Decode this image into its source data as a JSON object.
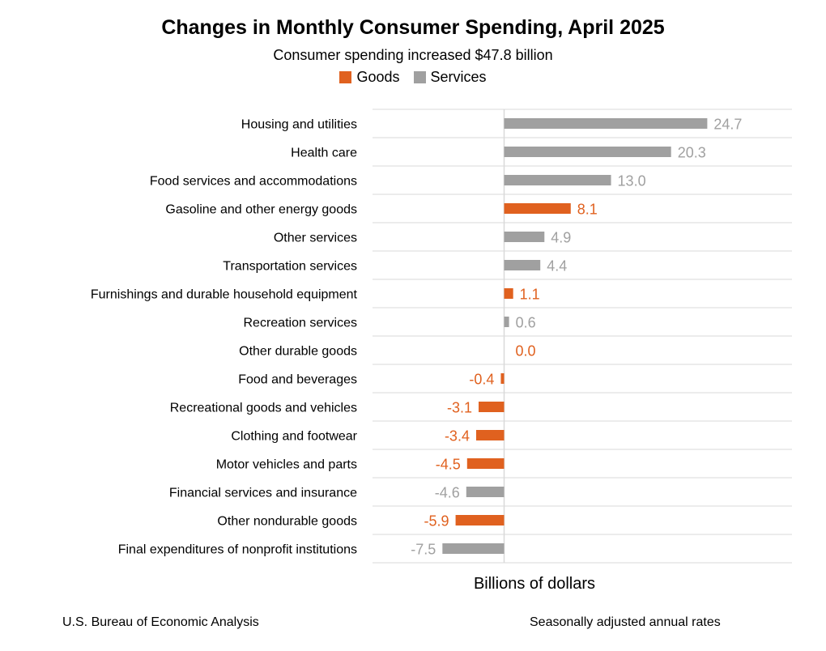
{
  "chart_data": {
    "type": "bar",
    "orientation": "horizontal",
    "title": "Changes in Monthly Consumer Spending, April 2025",
    "subtitle": "Consumer spending increased $47.8 billion",
    "xlabel": "Billions of dollars",
    "xlim": [
      -16,
      35
    ],
    "legend": [
      {
        "name": "Goods",
        "color": "#E0611F"
      },
      {
        "name": "Services",
        "color": "#A0A0A0"
      }
    ],
    "categories": [
      {
        "label": "Housing and utilities",
        "value": 24.7,
        "display": "24.7",
        "type": "Services"
      },
      {
        "label": "Health care",
        "value": 20.3,
        "display": "20.3",
        "type": "Services"
      },
      {
        "label": "Food services and accommodations",
        "value": 13.0,
        "display": "13.0",
        "type": "Services"
      },
      {
        "label": "Gasoline and other energy goods",
        "value": 8.1,
        "display": "8.1",
        "type": "Goods"
      },
      {
        "label": "Other services",
        "value": 4.9,
        "display": "4.9",
        "type": "Services"
      },
      {
        "label": "Transportation services",
        "value": 4.4,
        "display": "4.4",
        "type": "Services"
      },
      {
        "label": "Furnishings and durable household equipment",
        "value": 1.1,
        "display": "1.1",
        "type": "Goods"
      },
      {
        "label": "Recreation services",
        "value": 0.6,
        "display": "0.6",
        "type": "Services"
      },
      {
        "label": "Other durable goods",
        "value": 0.0,
        "display": "0.0",
        "type": "Goods"
      },
      {
        "label": "Food and beverages",
        "value": -0.4,
        "display": "-0.4",
        "type": "Goods"
      },
      {
        "label": "Recreational goods and vehicles",
        "value": -3.1,
        "display": "-3.1",
        "type": "Goods"
      },
      {
        "label": "Clothing and footwear",
        "value": -3.4,
        "display": "-3.4",
        "type": "Goods"
      },
      {
        "label": "Motor vehicles and parts",
        "value": -4.5,
        "display": "-4.5",
        "type": "Goods"
      },
      {
        "label": "Financial services and insurance",
        "value": -4.6,
        "display": "-4.6",
        "type": "Services"
      },
      {
        "label": "Other nondurable goods",
        "value": -5.9,
        "display": "-5.9",
        "type": "Goods"
      },
      {
        "label": "Final expenditures of nonprofit institutions",
        "value": -7.5,
        "display": "-7.5",
        "type": "Services"
      }
    ]
  },
  "footer": {
    "source": "U.S. Bureau of Economic Analysis",
    "note": "Seasonally adjusted annual rates"
  }
}
